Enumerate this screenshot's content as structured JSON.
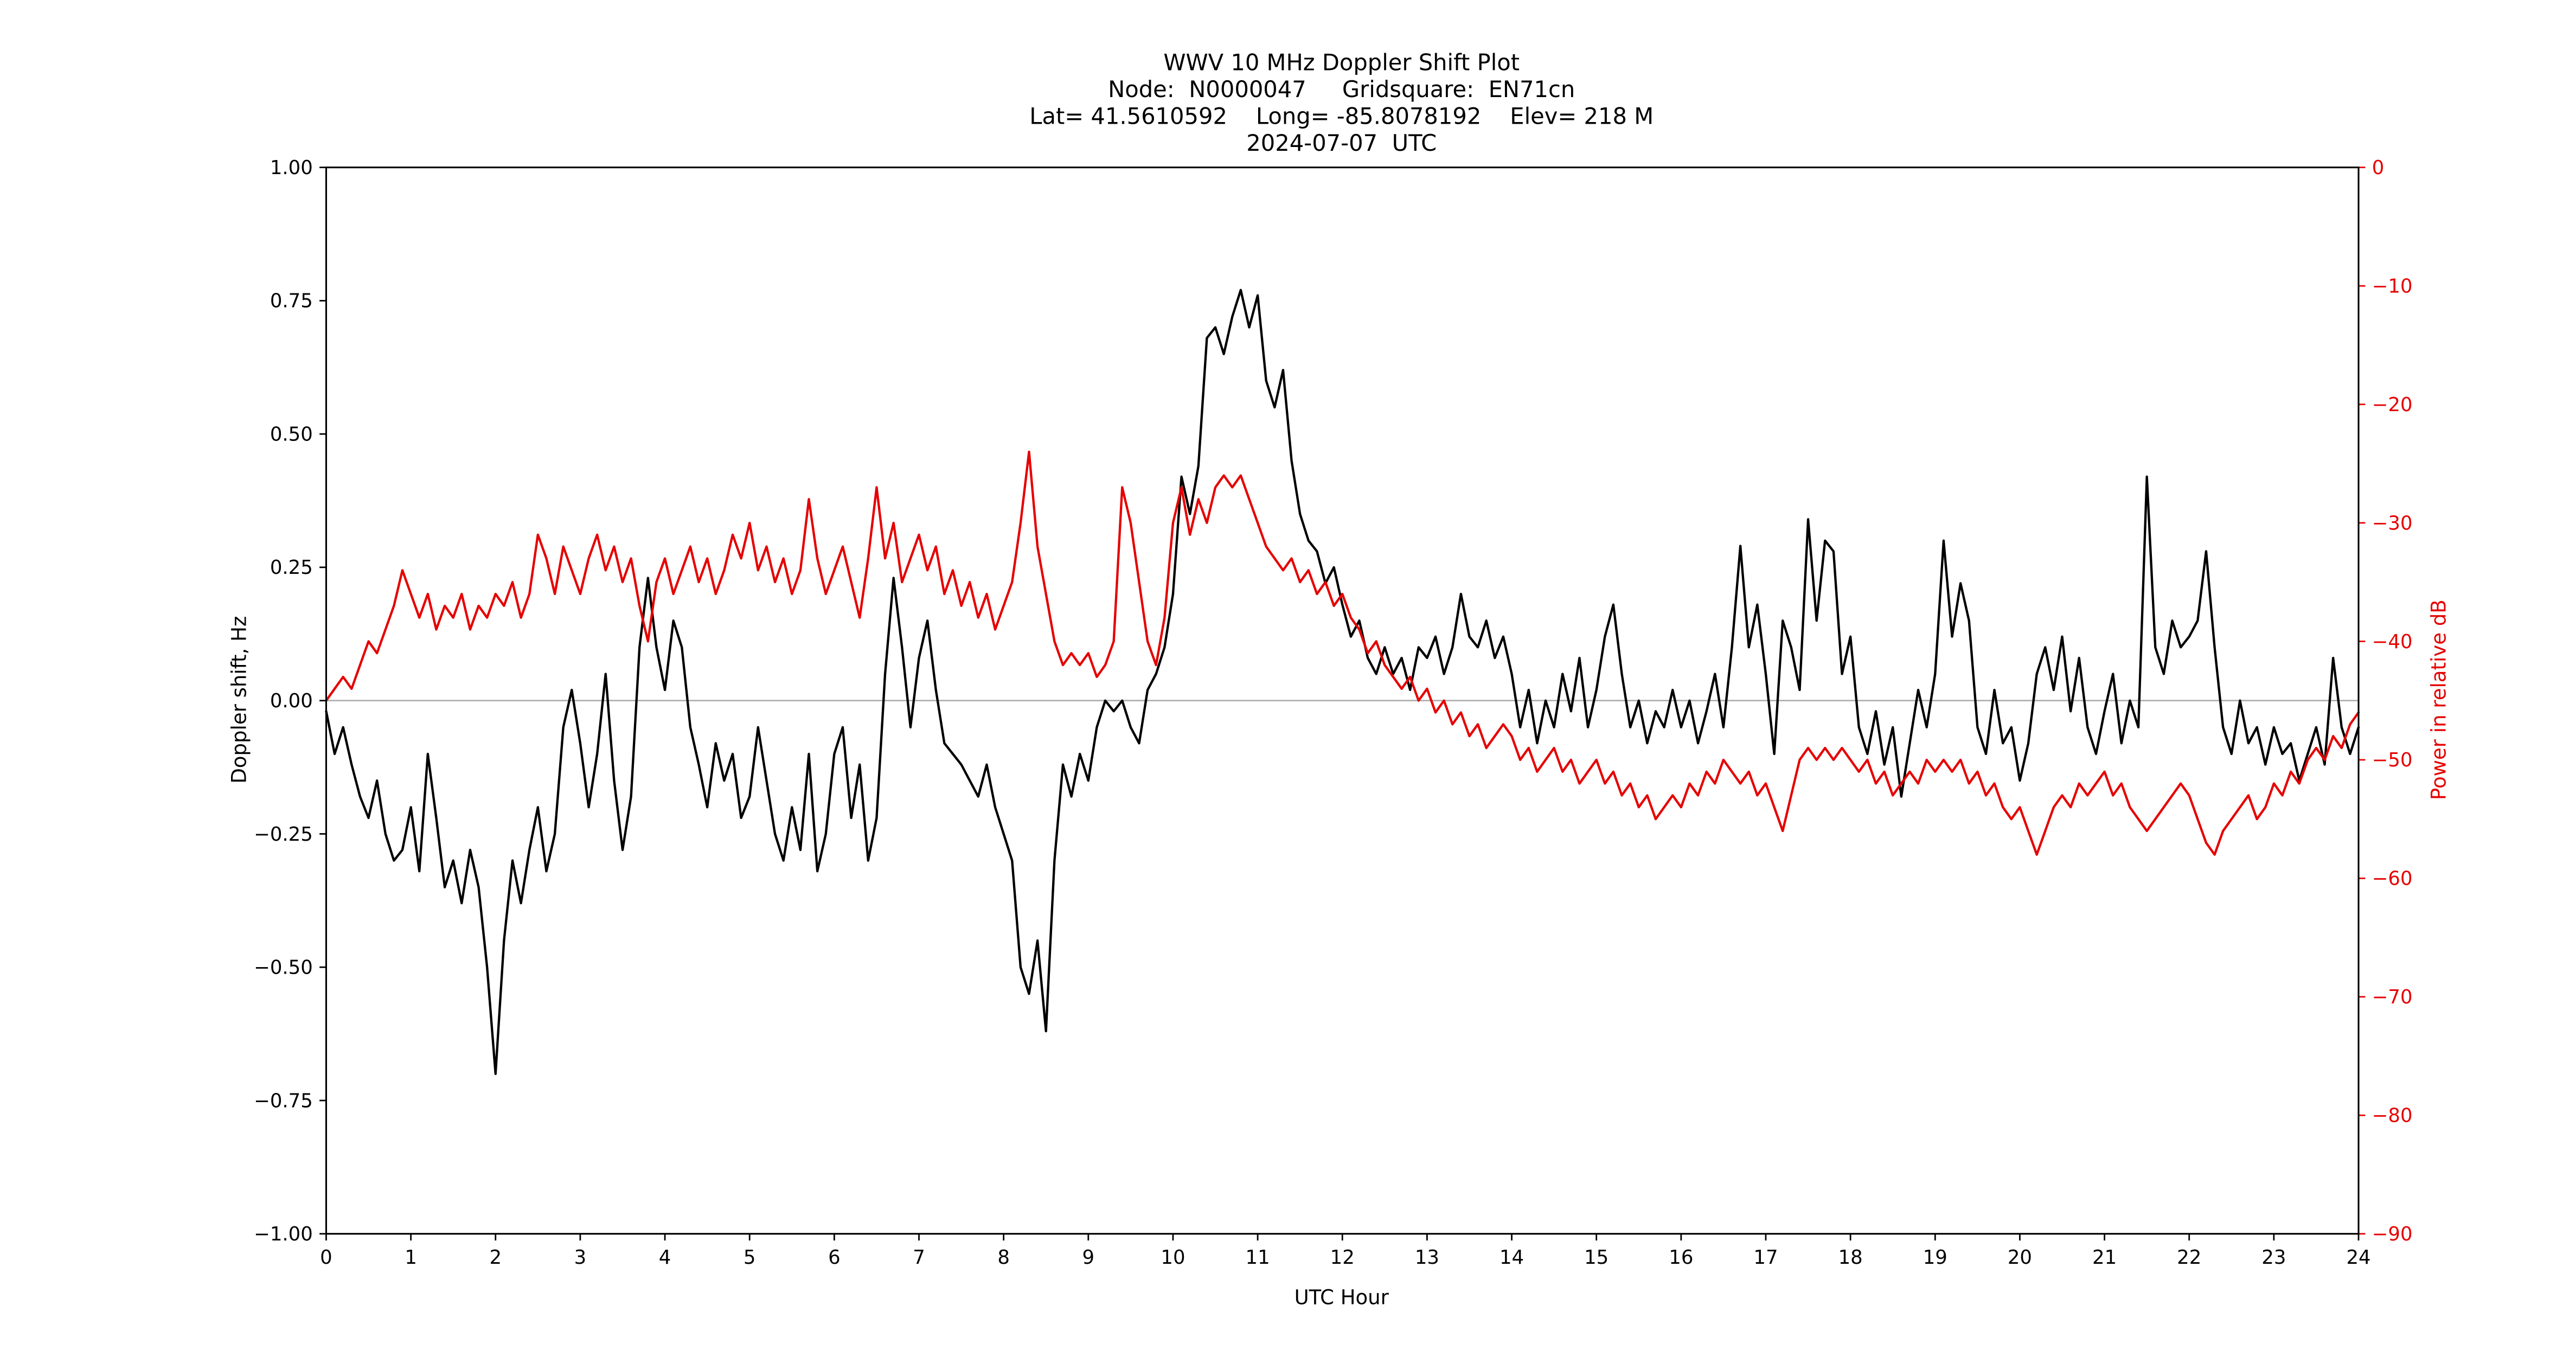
{
  "colors": {
    "doppler_line": "#000000",
    "power_line": "#e60000",
    "zero_line": "#b0b0b0",
    "axis_spine": "#000000",
    "background": "#ffffff"
  },
  "chart_data": {
    "type": "line",
    "title": "WWV 10 MHz Doppler Shift Plot",
    "header_lines": [
      "WWV 10 MHz Doppler Shift Plot",
      "Node:  N0000047     Gridsquare:  EN71cn",
      "Lat= 41.5610592    Long= -85.8078192    Elev= 218 M",
      "2024-07-07  UTC"
    ],
    "station": {
      "node": "N0000047",
      "gridsquare": "EN71cn",
      "lat": "41.5610592",
      "long": "-85.8078192",
      "elev": "218 M",
      "date": "2024-07-07",
      "timezone": "UTC"
    },
    "xlabel": "UTC Hour",
    "ylabel_left": "Doppler shift, Hz",
    "ylabel_right": "Power in relative dB",
    "xlim": [
      0,
      24
    ],
    "ylim_left": [
      -1.0,
      1.0
    ],
    "ylim_right": [
      -90,
      0
    ],
    "grid": "zero-line-only",
    "legend": "none",
    "x_ticks": [
      0,
      1,
      2,
      3,
      4,
      5,
      6,
      7,
      8,
      9,
      10,
      11,
      12,
      13,
      14,
      15,
      16,
      17,
      18,
      19,
      20,
      21,
      22,
      23,
      24
    ],
    "x_tick_labels": [
      "0",
      "1",
      "2",
      "3",
      "4",
      "5",
      "6",
      "7",
      "8",
      "9",
      "10",
      "11",
      "12",
      "13",
      "14",
      "15",
      "16",
      "17",
      "18",
      "19",
      "20",
      "21",
      "22",
      "23",
      "24"
    ],
    "y_ticks_left": [
      1.0,
      0.75,
      0.5,
      0.25,
      0.0,
      -0.25,
      -0.5,
      -0.75,
      -1.0
    ],
    "y_tick_labels_left": [
      "1.00",
      "0.75",
      "0.50",
      "0.25",
      "0.00",
      "−0.25",
      "−0.50",
      "−0.75",
      "−1.00"
    ],
    "y_ticks_right": [
      0,
      -10,
      -20,
      -30,
      -40,
      -50,
      -60,
      -70,
      -80,
      -90
    ],
    "y_tick_labels_right": [
      "0",
      "−10",
      "−20",
      "−30",
      "−40",
      "−50",
      "−60",
      "−70",
      "−80",
      "−90"
    ],
    "zero_line_left_value": 0,
    "x": {
      "start": 0,
      "step": 0.1,
      "count": 241,
      "units": "UTC hour"
    },
    "series": [
      {
        "name": "Doppler shift, Hz",
        "axis": "left",
        "color": "#000000",
        "values": [
          -0.02,
          -0.1,
          -0.05,
          -0.12,
          -0.18,
          -0.22,
          -0.15,
          -0.25,
          -0.3,
          -0.28,
          -0.2,
          -0.32,
          -0.1,
          -0.22,
          -0.35,
          -0.3,
          -0.38,
          -0.28,
          -0.35,
          -0.5,
          -0.7,
          -0.45,
          -0.3,
          -0.38,
          -0.28,
          -0.2,
          -0.32,
          -0.25,
          -0.05,
          0.02,
          -0.08,
          -0.2,
          -0.1,
          0.05,
          -0.15,
          -0.28,
          -0.18,
          0.1,
          0.23,
          0.1,
          0.02,
          0.15,
          0.1,
          -0.05,
          -0.12,
          -0.2,
          -0.08,
          -0.15,
          -0.1,
          -0.22,
          -0.18,
          -0.05,
          -0.15,
          -0.25,
          -0.3,
          -0.2,
          -0.28,
          -0.1,
          -0.32,
          -0.25,
          -0.1,
          -0.05,
          -0.22,
          -0.12,
          -0.3,
          -0.22,
          0.05,
          0.23,
          0.1,
          -0.05,
          0.08,
          0.15,
          0.02,
          -0.08,
          -0.1,
          -0.12,
          -0.15,
          -0.18,
          -0.12,
          -0.2,
          -0.25,
          -0.3,
          -0.5,
          -0.55,
          -0.45,
          -0.62,
          -0.3,
          -0.12,
          -0.18,
          -0.1,
          -0.15,
          -0.05,
          0.0,
          -0.02,
          0.0,
          -0.05,
          -0.08,
          0.02,
          0.05,
          0.1,
          0.2,
          0.42,
          0.35,
          0.44,
          0.68,
          0.7,
          0.65,
          0.72,
          0.77,
          0.7,
          0.76,
          0.6,
          0.55,
          0.62,
          0.45,
          0.35,
          0.3,
          0.28,
          0.22,
          0.25,
          0.18,
          0.12,
          0.15,
          0.08,
          0.05,
          0.1,
          0.05,
          0.08,
          0.02,
          0.1,
          0.08,
          0.12,
          0.05,
          0.1,
          0.2,
          0.12,
          0.1,
          0.15,
          0.08,
          0.12,
          0.05,
          -0.05,
          0.02,
          -0.08,
          0.0,
          -0.05,
          0.05,
          -0.02,
          0.08,
          -0.05,
          0.02,
          0.12,
          0.18,
          0.05,
          -0.05,
          0.0,
          -0.08,
          -0.02,
          -0.05,
          0.02,
          -0.05,
          0.0,
          -0.08,
          -0.02,
          0.05,
          -0.05,
          0.1,
          0.29,
          0.1,
          0.18,
          0.05,
          -0.1,
          0.15,
          0.1,
          0.02,
          0.34,
          0.15,
          0.3,
          0.28,
          0.05,
          0.12,
          -0.05,
          -0.1,
          -0.02,
          -0.12,
          -0.05,
          -0.18,
          -0.08,
          0.02,
          -0.05,
          0.05,
          0.3,
          0.12,
          0.22,
          0.15,
          -0.05,
          -0.1,
          0.02,
          -0.08,
          -0.05,
          -0.15,
          -0.08,
          0.05,
          0.1,
          0.02,
          0.12,
          -0.02,
          0.08,
          -0.05,
          -0.1,
          -0.02,
          0.05,
          -0.08,
          0.0,
          -0.05,
          0.42,
          0.1,
          0.05,
          0.15,
          0.1,
          0.12,
          0.15,
          0.28,
          0.1,
          -0.05,
          -0.1,
          0.0,
          -0.08,
          -0.05,
          -0.12,
          -0.05,
          -0.1,
          -0.08,
          -0.15,
          -0.1,
          -0.05,
          -0.12,
          0.08,
          -0.05,
          -0.1,
          -0.05
        ]
      },
      {
        "name": "Power in relative dB",
        "axis": "right",
        "color": "#e60000",
        "values": [
          -45,
          -44,
          -43,
          -44,
          -42,
          -40,
          -41,
          -39,
          -37,
          -34,
          -36,
          -38,
          -36,
          -39,
          -37,
          -38,
          -36,
          -39,
          -37,
          -38,
          -36,
          -37,
          -35,
          -38,
          -36,
          -31,
          -33,
          -36,
          -32,
          -34,
          -36,
          -33,
          -31,
          -34,
          -32,
          -35,
          -33,
          -37,
          -40,
          -35,
          -33,
          -36,
          -34,
          -32,
          -35,
          -33,
          -36,
          -34,
          -31,
          -33,
          -30,
          -34,
          -32,
          -35,
          -33,
          -36,
          -34,
          -28,
          -33,
          -36,
          -34,
          -32,
          -35,
          -38,
          -33,
          -27,
          -33,
          -30,
          -35,
          -33,
          -31,
          -34,
          -32,
          -36,
          -34,
          -37,
          -35,
          -38,
          -36,
          -39,
          -37,
          -35,
          -30,
          -24,
          -32,
          -36,
          -40,
          -42,
          -41,
          -42,
          -41,
          -43,
          -42,
          -40,
          -27,
          -30,
          -35,
          -40,
          -42,
          -38,
          -30,
          -27,
          -31,
          -28,
          -30,
          -27,
          -26,
          -27,
          -26,
          -28,
          -30,
          -32,
          -33,
          -34,
          -33,
          -35,
          -34,
          -36,
          -35,
          -37,
          -36,
          -38,
          -39,
          -41,
          -40,
          -42,
          -43,
          -44,
          -43,
          -45,
          -44,
          -46,
          -45,
          -47,
          -46,
          -48,
          -47,
          -49,
          -48,
          -47,
          -48,
          -50,
          -49,
          -51,
          -50,
          -49,
          -51,
          -50,
          -52,
          -51,
          -50,
          -52,
          -51,
          -53,
          -52,
          -54,
          -53,
          -55,
          -54,
          -53,
          -54,
          -52,
          -53,
          -51,
          -52,
          -50,
          -51,
          -52,
          -51,
          -53,
          -52,
          -54,
          -56,
          -53,
          -50,
          -49,
          -50,
          -49,
          -50,
          -49,
          -50,
          -51,
          -50,
          -52,
          -51,
          -53,
          -52,
          -51,
          -52,
          -50,
          -51,
          -50,
          -51,
          -50,
          -52,
          -51,
          -53,
          -52,
          -54,
          -55,
          -54,
          -56,
          -58,
          -56,
          -54,
          -53,
          -54,
          -52,
          -53,
          -52,
          -51,
          -53,
          -52,
          -54,
          -55,
          -56,
          -55,
          -54,
          -53,
          -52,
          -53,
          -55,
          -57,
          -58,
          -56,
          -55,
          -54,
          -53,
          -55,
          -54,
          -52,
          -53,
          -51,
          -52,
          -50,
          -49,
          -50,
          -48,
          -49,
          -47,
          -46
        ]
      }
    ]
  }
}
